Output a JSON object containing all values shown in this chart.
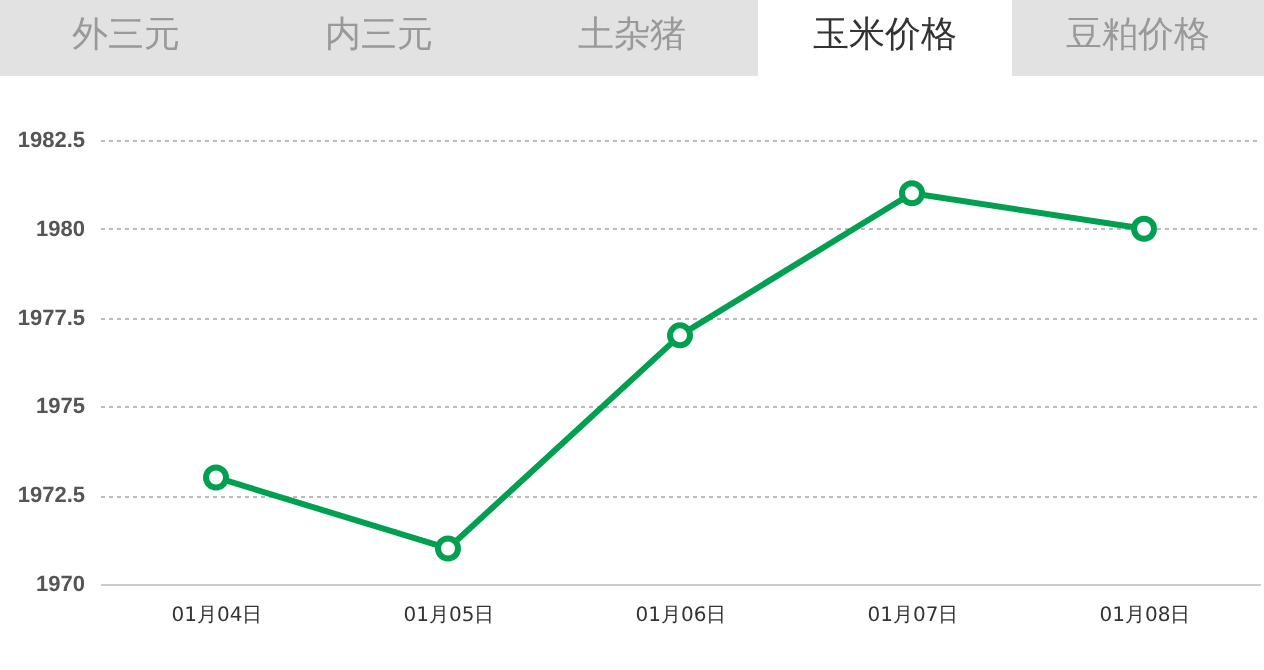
{
  "chart_data": {
    "type": "line",
    "title": "玉米价格",
    "annotations": [
      "外三元",
      "内三元",
      "土杂猪",
      "豆粕价格"
    ],
    "categories": [
      "01月04日",
      "01月05日",
      "01月06日",
      "01月07日",
      "01月08日"
    ],
    "series": [
      {
        "color": "#00a050",
        "values": [
          1973,
          1971,
          1977,
          1981,
          1980
        ]
      }
    ],
    "ylim": [
      1970,
      1982.5
    ],
    "yticks": [
      1970,
      1972.5,
      1975,
      1977.5,
      1980,
      1982.5
    ],
    "grid": "y",
    "marker": "circle",
    "line_style": "solid"
  }
}
